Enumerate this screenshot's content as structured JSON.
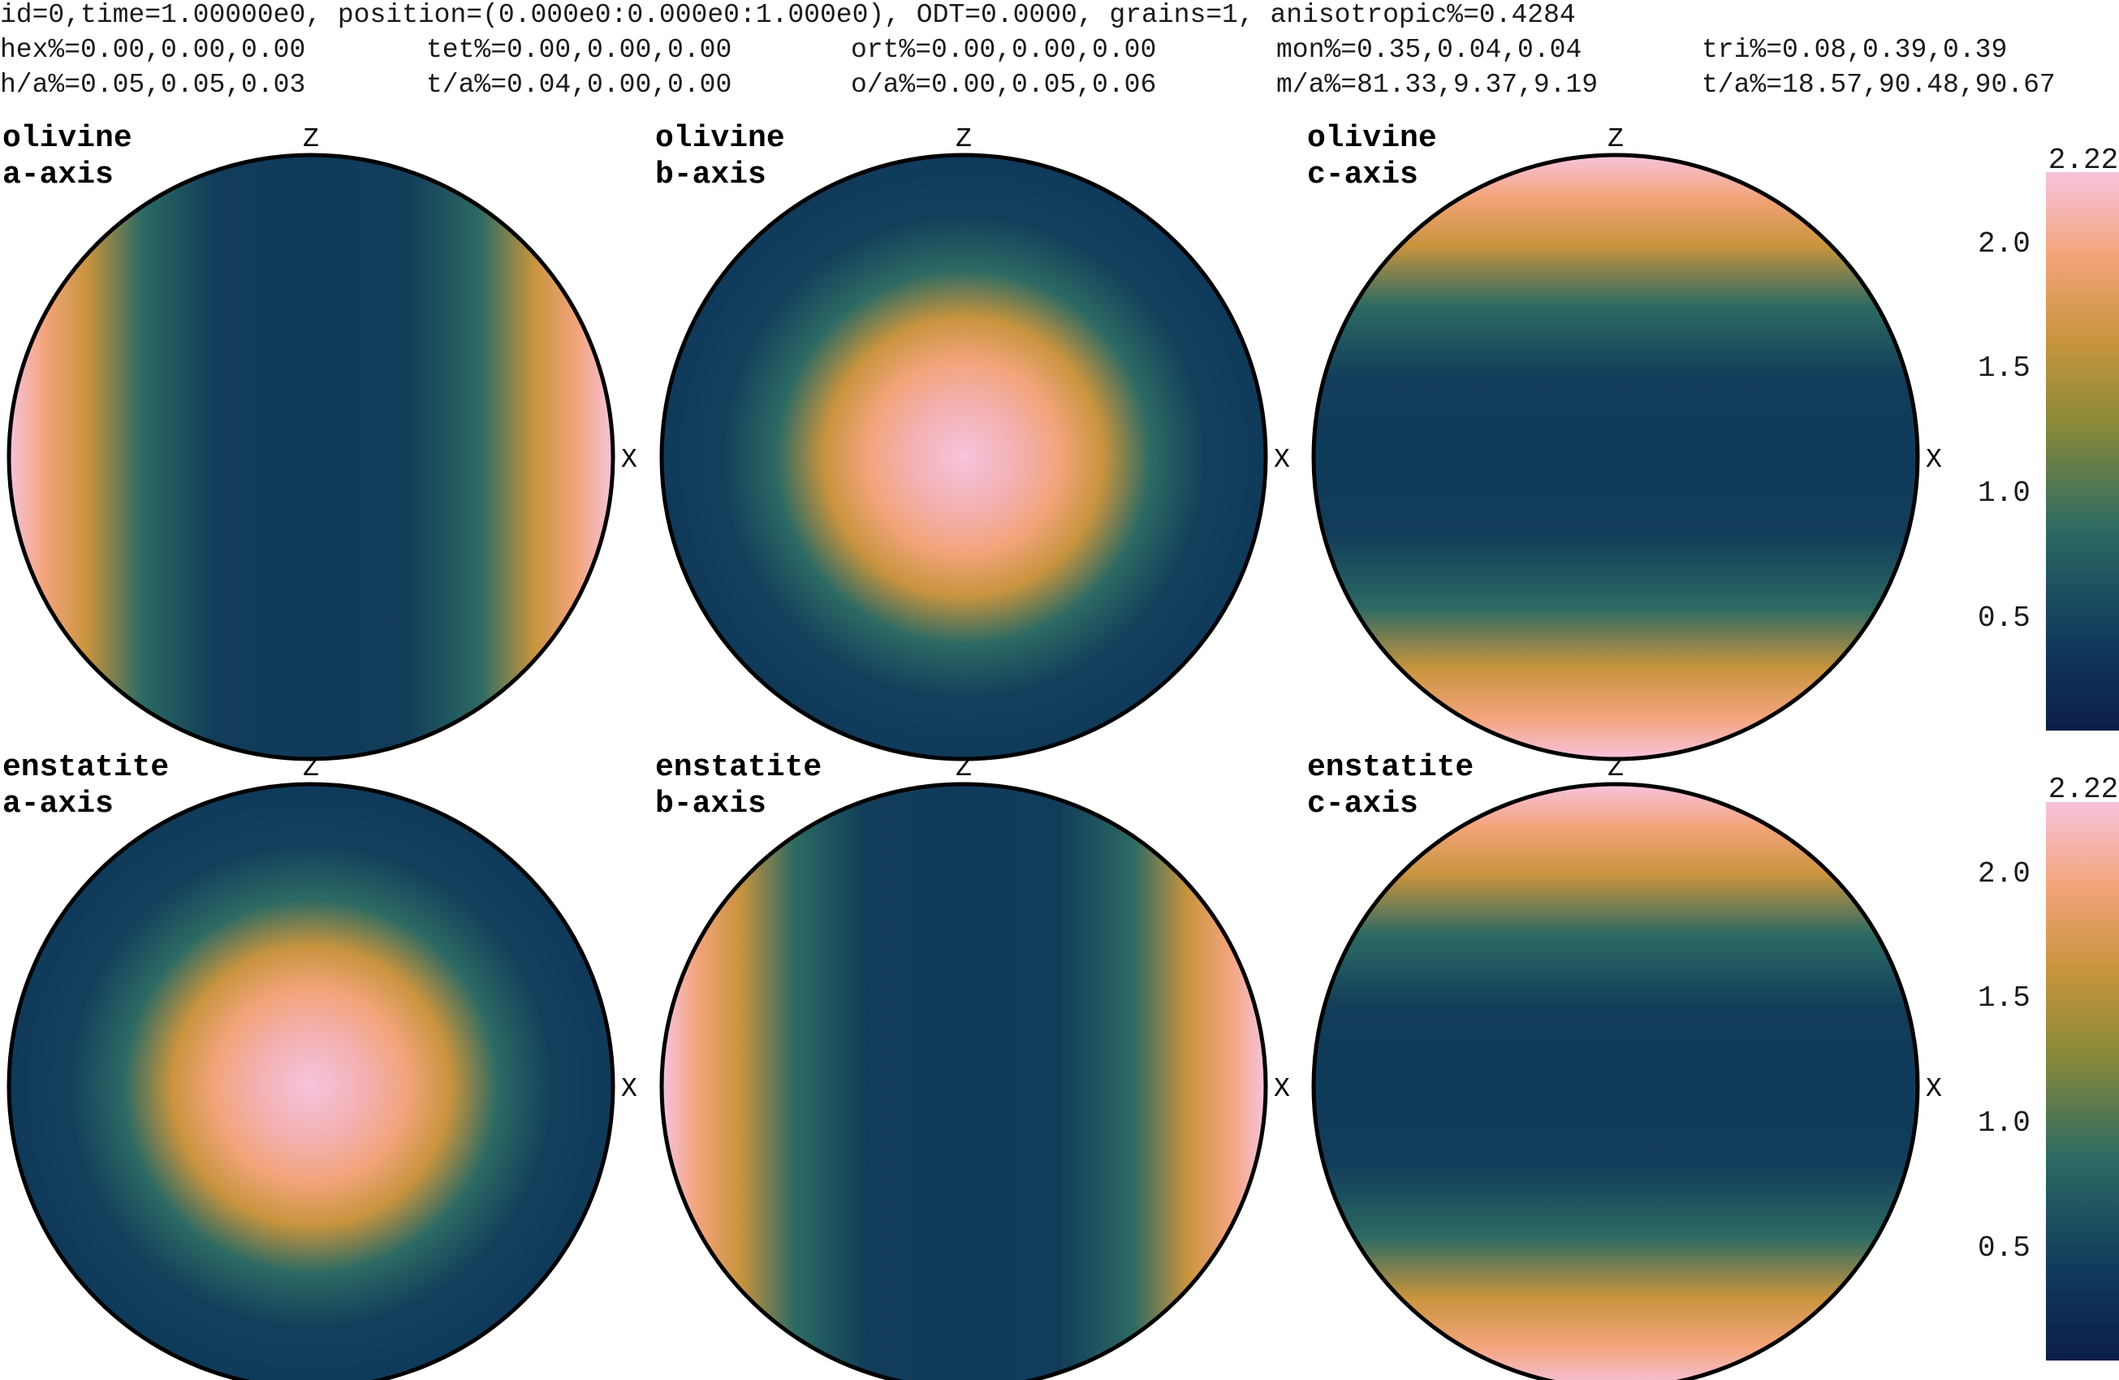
{
  "header": {
    "line1": [
      "id=0,time=1.00000e0, position=(0.000e0:0.000e0:1.000e0), ODT=0.0000, grains=1, anisotropic%=0.4284"
    ],
    "line2": [
      "hex%=0.00,0.00,0.00",
      "tet%=0.00,0.00,0.00",
      "ort%=0.00,0.00,0.00",
      "mon%=0.35,0.04,0.04",
      "tri%=0.08,0.39,0.39"
    ],
    "line3": [
      "h/a%=0.05,0.05,0.03",
      "t/a%=0.04,0.00,0.00",
      "o/a%=0.00,0.05,0.06",
      "m/a%=81.33,9.37,9.19",
      "t/a%=18.57,90.48,90.67"
    ]
  },
  "axis_labels": {
    "z": "Z",
    "x": "X"
  },
  "colors": {
    "colormap": [
      "#0b1d4a",
      "#103a5c",
      "#2c6a63",
      "#8a8a38",
      "#c9943e",
      "#f3a47a",
      "#f6c3dd"
    ],
    "outline": "#000000"
  },
  "chart_data": {
    "type": "heatmap",
    "projection": "pole figure",
    "value_range": [
      0,
      2.22
    ],
    "colorbar_ticks": {
      "top": [
        "2.22",
        "2.0",
        "1.5",
        "1.0",
        "0.5"
      ],
      "bottom": [
        "2.22",
        "2.0",
        "1.5",
        "1.0",
        "0.5"
      ]
    },
    "panels": [
      {
        "mineral": "olivine",
        "axis": "a-axis",
        "peak_direction": "X",
        "max_value": 2.22,
        "min_value": 0.1
      },
      {
        "mineral": "olivine",
        "axis": "b-axis",
        "peak_direction": "center",
        "max_value": 2.22,
        "min_value": 0.1
      },
      {
        "mineral": "olivine",
        "axis": "c-axis",
        "peak_direction": "Z",
        "max_value": 2.22,
        "min_value": 0.1
      },
      {
        "mineral": "enstatite",
        "axis": "a-axis",
        "peak_direction": "center",
        "max_value": 2.22,
        "min_value": 0.1
      },
      {
        "mineral": "enstatite",
        "axis": "b-axis",
        "peak_direction": "X",
        "max_value": 2.22,
        "min_value": 0.1
      },
      {
        "mineral": "enstatite",
        "axis": "c-axis",
        "peak_direction": "Z",
        "max_value": 2.22,
        "min_value": 0.1
      }
    ]
  }
}
